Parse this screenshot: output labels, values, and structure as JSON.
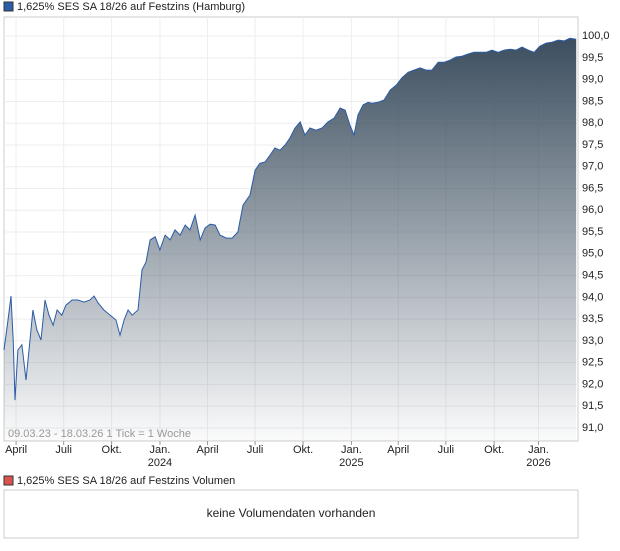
{
  "chart_data": {
    "type": "area",
    "note": "09.03.23 - 18.03.26   1 Tick = 1 Woche",
    "x": [
      0,
      1.1,
      1.9,
      2.5,
      3.0,
      3.8,
      4.9,
      6.0,
      7.1,
      7.9,
      9.0,
      10.1,
      11.2,
      12.3,
      13.4,
      14.5,
      15.8,
      16.9,
      18.6,
      20.2,
      21.9,
      23.5,
      24.6,
      25.7,
      27.3,
      29.0,
      30.6,
      31.7,
      32.8,
      33.9,
      35.0,
      36.6,
      37.7,
      38.8,
      39.9,
      41.3,
      42.6,
      44.0,
      45.4,
      46.7,
      48.1,
      49.5,
      50.8,
      52.2,
      53.6,
      54.9,
      56.3,
      57.7,
      59.0,
      60.7,
      62.3,
      63.9,
      65.3,
      67.2,
      68.6,
      69.9,
      71.3,
      72.7,
      74.0,
      75.4,
      76.8,
      78.1,
      79.5,
      80.9,
      82.2,
      83.6,
      85.2,
      86.9,
      88.5,
      90.2,
      91.8,
      93.2,
      94.5,
      95.6,
      96.7,
      98.1,
      99.5,
      100.5,
      102.2,
      103.8,
      105.5,
      107.1,
      108.7,
      110.4,
      112.0,
      113.7,
      115.3,
      116.9,
      118.6,
      120.2,
      121.9,
      123.5,
      125.1,
      126.8,
      128.4,
      130.1,
      131.7,
      133.3,
      135.0,
      136.6,
      138.3,
      139.9,
      141.5,
      143.2,
      144.8,
      146.4,
      148.1,
      149.7,
      151.4,
      153.0,
      154.6,
      156.3
    ],
    "series": [
      {
        "name": "1,625% SES SA 18/26 auf Festzins (Hamburg)",
        "color": "#2b5ca8",
        "values": [
          92.79,
          93.48,
          94.03,
          93.02,
          91.64,
          92.79,
          92.91,
          92.1,
          93.02,
          93.71,
          93.25,
          93.02,
          93.94,
          93.59,
          93.36,
          93.71,
          93.59,
          93.82,
          93.94,
          93.94,
          93.89,
          93.94,
          94.03,
          93.87,
          93.71,
          93.59,
          93.48,
          93.13,
          93.48,
          93.71,
          93.59,
          93.71,
          94.63,
          94.81,
          95.32,
          95.39,
          95.09,
          95.43,
          95.32,
          95.55,
          95.43,
          95.66,
          95.55,
          95.89,
          95.32,
          95.59,
          95.68,
          95.66,
          95.43,
          95.36,
          95.36,
          95.5,
          96.12,
          96.35,
          96.92,
          97.08,
          97.11,
          97.27,
          97.43,
          97.38,
          97.5,
          97.66,
          97.89,
          98.03,
          97.73,
          97.89,
          97.84,
          97.89,
          98.03,
          98.12,
          98.35,
          98.3,
          97.96,
          97.73,
          98.19,
          98.42,
          98.48,
          98.46,
          98.48,
          98.53,
          98.76,
          98.87,
          99.04,
          99.17,
          99.22,
          99.27,
          99.22,
          99.22,
          99.4,
          99.4,
          99.45,
          99.52,
          99.54,
          99.59,
          99.63,
          99.63,
          99.63,
          99.68,
          99.63,
          99.68,
          99.7,
          99.68,
          99.75,
          99.68,
          99.63,
          99.77,
          99.84,
          99.86,
          99.91,
          99.89,
          99.95,
          99.93
        ]
      }
    ],
    "xlim": [
      0,
      156.8
    ],
    "xticks": [
      {
        "value": 3.3,
        "label": "April"
      },
      {
        "value": 16.3,
        "label": "Juli"
      },
      {
        "value": 29.4,
        "label": "Okt."
      },
      {
        "value": 42.6,
        "label": "Jan.",
        "year": "2024"
      },
      {
        "value": 55.6,
        "label": "April"
      },
      {
        "value": 68.6,
        "label": "Juli"
      },
      {
        "value": 81.7,
        "label": "Okt."
      },
      {
        "value": 94.9,
        "label": "Jan.",
        "year": "2025"
      },
      {
        "value": 107.7,
        "label": "April"
      },
      {
        "value": 120.7,
        "label": "Juli"
      },
      {
        "value": 133.9,
        "label": "Okt."
      },
      {
        "value": 146.0,
        "label": "Jan.",
        "year": "2026"
      }
    ],
    "ylim": [
      90.7,
      100.44
    ],
    "yticks": [
      {
        "value": 91,
        "label": "91,0"
      },
      {
        "value": 91.5,
        "label": "91,5"
      },
      {
        "value": 92,
        "label": "92,0"
      },
      {
        "value": 92.5,
        "label": "92,5"
      },
      {
        "value": 93,
        "label": "93,0"
      },
      {
        "value": 93.5,
        "label": "93,5"
      },
      {
        "value": 94,
        "label": "94,0"
      },
      {
        "value": 94.5,
        "label": "94,5"
      },
      {
        "value": 95,
        "label": "95,0"
      },
      {
        "value": 95.5,
        "label": "95,5"
      },
      {
        "value": 96,
        "label": "96,0"
      },
      {
        "value": 96.5,
        "label": "96,5"
      },
      {
        "value": 97,
        "label": "97,0"
      },
      {
        "value": 97.5,
        "label": "97,5"
      },
      {
        "value": 98,
        "label": "98,0"
      },
      {
        "value": 98.5,
        "label": "98,5"
      },
      {
        "value": 99,
        "label": "99,0"
      },
      {
        "value": 99.5,
        "label": "99,5"
      },
      {
        "value": 100,
        "label": "100,0"
      }
    ],
    "grid": true
  },
  "volume_panel": {
    "title": "1,625% SES SA 18/26 auf Festzins Volumen",
    "color": "#d9534f",
    "message": "keine Volumendaten vorhanden"
  }
}
